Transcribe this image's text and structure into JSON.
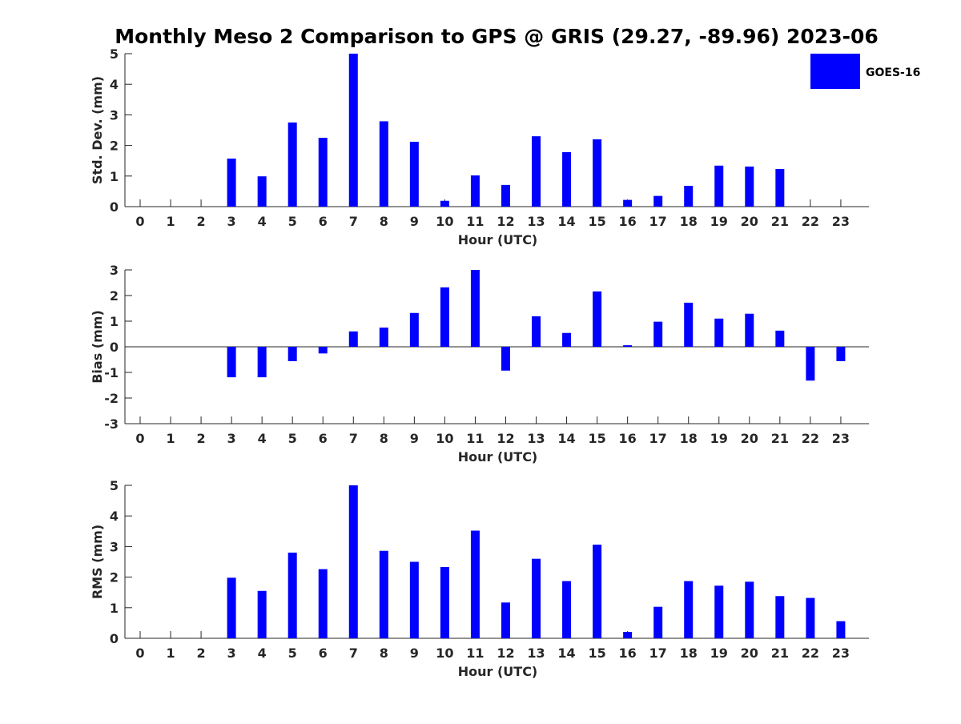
{
  "figure_title": "Monthly Meso 2 Comparison to GPS @ GRIS (29.27, -89.96) 2023-06",
  "legend": {
    "label": "GOES-16",
    "color": "#0000ff",
    "placement": "top-right"
  },
  "bar_color": "#0000ff",
  "chart_data": [
    {
      "type": "bar",
      "ylabel": "Std. Dev. (mm)",
      "xlabel": "Hour (UTC)",
      "ylim": [
        0,
        5
      ],
      "yticks": [
        0,
        1,
        2,
        3,
        4,
        5
      ],
      "categories": [
        0,
        1,
        2,
        3,
        4,
        5,
        6,
        7,
        8,
        9,
        10,
        11,
        12,
        13,
        14,
        15,
        16,
        17,
        18,
        19,
        20,
        21,
        22,
        23
      ],
      "values": [
        null,
        null,
        null,
        1.57,
        0.99,
        2.75,
        2.25,
        5.0,
        2.79,
        2.12,
        0.19,
        1.02,
        0.71,
        2.3,
        1.78,
        2.2,
        0.22,
        0.35,
        0.68,
        1.34,
        1.31,
        1.23,
        null,
        null
      ]
    },
    {
      "type": "bar",
      "ylabel": "Bias (mm)",
      "xlabel": "Hour (UTC)",
      "ylim": [
        -3,
        3
      ],
      "yticks": [
        -3,
        -2,
        -1,
        0,
        1,
        2,
        3
      ],
      "categories": [
        0,
        1,
        2,
        3,
        4,
        5,
        6,
        7,
        8,
        9,
        10,
        11,
        12,
        13,
        14,
        15,
        16,
        17,
        18,
        19,
        20,
        21,
        22,
        23
      ],
      "values": [
        null,
        null,
        null,
        -1.19,
        -1.19,
        -0.56,
        -0.26,
        0.6,
        0.75,
        1.32,
        2.32,
        3.0,
        -0.93,
        1.19,
        0.54,
        2.16,
        0.06,
        0.98,
        1.72,
        1.1,
        1.29,
        0.63,
        -1.32,
        -0.56
      ]
    },
    {
      "type": "bar",
      "ylabel": "RMS (mm)",
      "xlabel": "Hour (UTC)",
      "ylim": [
        0,
        5
      ],
      "yticks": [
        0,
        1,
        2,
        3,
        4,
        5
      ],
      "categories": [
        0,
        1,
        2,
        3,
        4,
        5,
        6,
        7,
        8,
        9,
        10,
        11,
        12,
        13,
        14,
        15,
        16,
        17,
        18,
        19,
        20,
        21,
        22,
        23
      ],
      "values": [
        null,
        null,
        null,
        1.98,
        1.55,
        2.8,
        2.26,
        5.0,
        2.86,
        2.5,
        2.33,
        3.52,
        1.17,
        2.6,
        1.87,
        3.06,
        0.21,
        1.03,
        1.87,
        1.72,
        1.85,
        1.38,
        1.32,
        0.56
      ]
    }
  ]
}
